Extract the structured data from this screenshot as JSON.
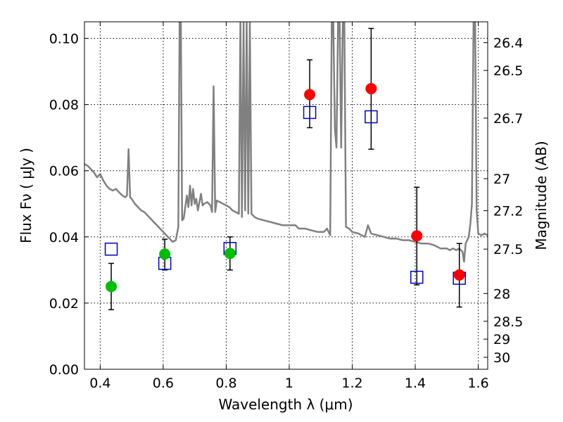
{
  "chart_data": {
    "type": "scatter",
    "xlabel": "Wavelength  λ (μm)",
    "ylabel": "Flux  Fν  ( μJy )",
    "ylabel_right": "Magnitude (AB)",
    "xlim": [
      0.35,
      1.63
    ],
    "ylim": [
      0.0,
      0.105
    ],
    "grid": true,
    "x_ticks": [
      0.4,
      0.6,
      0.8,
      1.0,
      1.2,
      1.4,
      1.6
    ],
    "x_tick_labels": [
      "0.4",
      "0.6",
      "0.8",
      "1",
      "1.2",
      "1.4",
      "1.6"
    ],
    "y_ticks": [
      0.0,
      0.02,
      0.04,
      0.06,
      0.08,
      0.1
    ],
    "y_tick_labels": [
      "0.00",
      "0.02",
      "0.04",
      "0.06",
      "0.08",
      "0.10"
    ],
    "right_ticks": [
      {
        "label": "26.4",
        "flux": 0.0987
      },
      {
        "label": "26.5",
        "flux": 0.0903
      },
      {
        "label": "26.7",
        "flux": 0.0759
      },
      {
        "label": "27",
        "flux": 0.0576
      },
      {
        "label": "27.2",
        "flux": 0.0479
      },
      {
        "label": "27.5",
        "flux": 0.0363
      },
      {
        "label": "28",
        "flux": 0.0229
      },
      {
        "label": "28.5",
        "flux": 0.0145
      },
      {
        "label": "29",
        "flux": 0.0091
      },
      {
        "label": "30",
        "flux": 0.0036
      }
    ],
    "colors": {
      "spectrum": "#808080",
      "detections": "#ff0000",
      "limits": "#00bf00",
      "model": "#0000cc",
      "errorbar": "#000000"
    },
    "series": [
      {
        "kind": "spectrum",
        "points": [
          [
            0.35,
            0.062
          ],
          [
            0.36,
            0.0615
          ],
          [
            0.37,
            0.0605
          ],
          [
            0.38,
            0.0595
          ],
          [
            0.39,
            0.058
          ],
          [
            0.4,
            0.059
          ],
          [
            0.41,
            0.057
          ],
          [
            0.42,
            0.0555
          ],
          [
            0.43,
            0.0545
          ],
          [
            0.44,
            0.054
          ],
          [
            0.45,
            0.0545
          ],
          [
            0.46,
            0.0535
          ],
          [
            0.47,
            0.0525
          ],
          [
            0.48,
            0.052
          ],
          [
            0.485,
            0.0525
          ],
          [
            0.49,
            0.0665
          ],
          [
            0.495,
            0.052
          ],
          [
            0.5,
            0.0515
          ],
          [
            0.51,
            0.05
          ],
          [
            0.52,
            0.049
          ],
          [
            0.53,
            0.048
          ],
          [
            0.54,
            0.0475
          ],
          [
            0.55,
            0.0465
          ],
          [
            0.56,
            0.0455
          ],
          [
            0.57,
            0.0445
          ],
          [
            0.58,
            0.0435
          ],
          [
            0.59,
            0.0425
          ],
          [
            0.6,
            0.0415
          ],
          [
            0.61,
            0.0405
          ],
          [
            0.62,
            0.0395
          ],
          [
            0.63,
            0.0385
          ],
          [
            0.64,
            0.039
          ],
          [
            0.648,
            0.043
          ],
          [
            0.652,
            0.105
          ],
          [
            0.656,
            0.105
          ],
          [
            0.66,
            0.045
          ],
          [
            0.665,
            0.0455
          ],
          [
            0.67,
            0.049
          ],
          [
            0.675,
            0.0525
          ],
          [
            0.68,
            0.049
          ],
          [
            0.685,
            0.0555
          ],
          [
            0.69,
            0.0495
          ],
          [
            0.695,
            0.0545
          ],
          [
            0.7,
            0.05
          ],
          [
            0.705,
            0.0515
          ],
          [
            0.71,
            0.048
          ],
          [
            0.715,
            0.0505
          ],
          [
            0.72,
            0.053
          ],
          [
            0.725,
            0.0495
          ],
          [
            0.73,
            0.05
          ],
          [
            0.74,
            0.0505
          ],
          [
            0.75,
            0.0495
          ],
          [
            0.755,
            0.0475
          ],
          [
            0.76,
            0.0855
          ],
          [
            0.765,
            0.0475
          ],
          [
            0.77,
            0.051
          ],
          [
            0.78,
            0.0505
          ],
          [
            0.79,
            0.05
          ],
          [
            0.8,
            0.0495
          ],
          [
            0.81,
            0.049
          ],
          [
            0.82,
            0.048
          ],
          [
            0.83,
            0.0475
          ],
          [
            0.84,
            0.047
          ],
          [
            0.845,
            0.105
          ],
          [
            0.85,
            0.046
          ],
          [
            0.855,
            0.105
          ],
          [
            0.86,
            0.048
          ],
          [
            0.865,
            0.105
          ],
          [
            0.87,
            0.047
          ],
          [
            0.875,
            0.105
          ],
          [
            0.88,
            0.047
          ],
          [
            0.89,
            0.046
          ],
          [
            0.9,
            0.0455
          ],
          [
            0.92,
            0.045
          ],
          [
            0.94,
            0.0445
          ],
          [
            0.96,
            0.044
          ],
          [
            0.98,
            0.0435
          ],
          [
            1.0,
            0.0435
          ],
          [
            1.02,
            0.0435
          ],
          [
            1.03,
            0.0425
          ],
          [
            1.05,
            0.0425
          ],
          [
            1.07,
            0.042
          ],
          [
            1.09,
            0.0415
          ],
          [
            1.11,
            0.0415
          ],
          [
            1.12,
            0.0425
          ],
          [
            1.13,
            0.0405
          ],
          [
            1.135,
            0.105
          ],
          [
            1.14,
            0.105
          ],
          [
            1.145,
            0.0725
          ],
          [
            1.15,
            0.067
          ],
          [
            1.155,
            0.105
          ],
          [
            1.16,
            0.105
          ],
          [
            1.165,
            0.067
          ],
          [
            1.17,
            0.105
          ],
          [
            1.175,
            0.105
          ],
          [
            1.18,
            0.043
          ],
          [
            1.19,
            0.0425
          ],
          [
            1.2,
            0.0415
          ],
          [
            1.22,
            0.041
          ],
          [
            1.24,
            0.04
          ],
          [
            1.25,
            0.0435
          ],
          [
            1.26,
            0.041
          ],
          [
            1.28,
            0.0405
          ],
          [
            1.3,
            0.04
          ],
          [
            1.32,
            0.0395
          ],
          [
            1.34,
            0.0395
          ],
          [
            1.36,
            0.039
          ],
          [
            1.38,
            0.039
          ],
          [
            1.4,
            0.0385
          ],
          [
            1.42,
            0.038
          ],
          [
            1.44,
            0.038
          ],
          [
            1.46,
            0.0375
          ],
          [
            1.48,
            0.0365
          ],
          [
            1.5,
            0.0365
          ],
          [
            1.51,
            0.036
          ],
          [
            1.52,
            0.0365
          ],
          [
            1.53,
            0.036
          ],
          [
            1.54,
            0.0365
          ],
          [
            1.55,
            0.0355
          ],
          [
            1.555,
            0.0325
          ],
          [
            1.56,
            0.038
          ],
          [
            1.57,
            0.04
          ],
          [
            1.575,
            0.044
          ],
          [
            1.58,
            0.05
          ],
          [
            1.585,
            0.105
          ],
          [
            1.59,
            0.105
          ],
          [
            1.595,
            0.048
          ],
          [
            1.6,
            0.041
          ],
          [
            1.61,
            0.0405
          ],
          [
            1.62,
            0.041
          ],
          [
            1.63,
            0.0405
          ]
        ]
      },
      {
        "kind": "model",
        "marker": "square",
        "points": [
          {
            "x": 0.435,
            "y": 0.0363
          },
          {
            "x": 0.605,
            "y": 0.032
          },
          {
            "x": 0.812,
            "y": 0.0365
          },
          {
            "x": 1.065,
            "y": 0.0776
          },
          {
            "x": 1.26,
            "y": 0.0763
          },
          {
            "x": 1.405,
            "y": 0.0278
          },
          {
            "x": 1.54,
            "y": 0.0275
          }
        ]
      },
      {
        "kind": "limits",
        "marker": "circle",
        "points": [
          {
            "x": 0.435,
            "y": 0.025,
            "ylo": 0.018,
            "yhi": 0.032
          },
          {
            "x": 0.605,
            "y": 0.0348,
            "ylo": 0.03,
            "yhi": 0.0393
          },
          {
            "x": 0.812,
            "y": 0.035,
            "ylo": 0.03,
            "yhi": 0.04
          }
        ]
      },
      {
        "kind": "detections",
        "marker": "circle",
        "points": [
          {
            "x": 1.065,
            "y": 0.083,
            "ylo": 0.073,
            "yhi": 0.0935
          },
          {
            "x": 1.26,
            "y": 0.0848,
            "ylo": 0.0665,
            "yhi": 0.103
          },
          {
            "x": 1.405,
            "y": 0.0403,
            "ylo": 0.0255,
            "yhi": 0.055
          },
          {
            "x": 1.54,
            "y": 0.0285,
            "ylo": 0.0188,
            "yhi": 0.038
          }
        ]
      }
    ]
  }
}
